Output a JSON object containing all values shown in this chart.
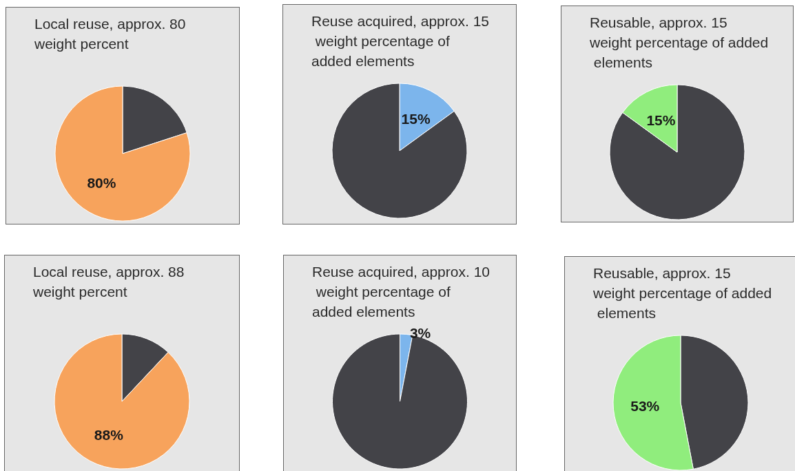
{
  "chart_data": [
    {
      "type": "pie",
      "title": "Local reuse, approx. 80 weight percent",
      "categories": [
        null,
        null
      ],
      "values": [
        20,
        80
      ],
      "colors": [
        "#434348",
        "#f7a35c"
      ],
      "value_labels": [
        null,
        "80%"
      ]
    },
    {
      "type": "pie",
      "title": "Reuse acquired, approx. 15 weight percentage of added elements",
      "categories": [
        null,
        null
      ],
      "values": [
        15,
        85
      ],
      "colors": [
        "#7cb5ec",
        "#434348"
      ],
      "value_labels": [
        "15%",
        null
      ]
    },
    {
      "type": "pie",
      "title": "Reusable, approx. 15 weight percentage of added elements",
      "categories": [
        null,
        null
      ],
      "values": [
        85,
        15
      ],
      "colors": [
        "#434348",
        "#90ed7d"
      ],
      "value_labels": [
        null,
        "15%"
      ]
    },
    {
      "type": "pie",
      "title": "Local reuse, approx. 88 weight percent",
      "categories": [
        null,
        null
      ],
      "values": [
        12,
        88
      ],
      "colors": [
        "#434348",
        "#f7a35c"
      ],
      "value_labels": [
        null,
        "88%"
      ]
    },
    {
      "type": "pie",
      "title": "Reuse acquired, approx. 10 weight percentage of added elements",
      "categories": [
        null,
        null
      ],
      "values": [
        3,
        97
      ],
      "colors": [
        "#7cb5ec",
        "#434348"
      ],
      "value_labels": [
        "3%",
        null
      ]
    },
    {
      "type": "pie",
      "title": "Reusable, approx. 15 weight percentage of added elements",
      "categories": [
        null,
        null
      ],
      "values": [
        47,
        53
      ],
      "colors": [
        "#434348",
        "#90ed7d"
      ],
      "value_labels": [
        null,
        "53%"
      ]
    }
  ]
}
